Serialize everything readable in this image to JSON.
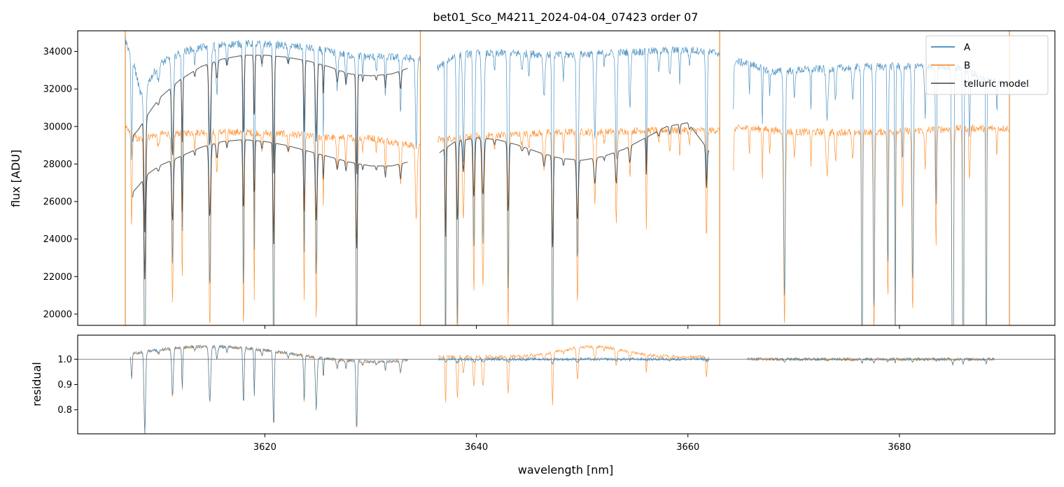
{
  "chart_data": [
    {
      "type": "line",
      "panel": "top",
      "title": "bet01_Sco_M4211_2024-04-04_07423  order 07",
      "xlabel": "",
      "ylabel": "flux [ADU]",
      "xlim": [
        3602.3,
        3694.7
      ],
      "ylim": [
        19400,
        35100
      ],
      "yticks": [
        20000,
        22000,
        24000,
        26000,
        28000,
        30000,
        32000,
        34000
      ],
      "ytick_labels": [
        "20000",
        "22000",
        "24000",
        "26000",
        "28000",
        "30000",
        "32000",
        "34000"
      ],
      "legend": {
        "position": "top-right",
        "entries": [
          "A",
          "B",
          "telluric model"
        ]
      },
      "series": [
        {
          "name": "A",
          "color": "#1f77b4",
          "segments": [
            [
              3606.8,
              3634.7
            ],
            [
              3636.3,
              3663.0
            ],
            [
              3664.3,
              3690.4
            ]
          ],
          "x": [
            3606.8,
            3607.5,
            3608.3,
            3609.0,
            3610.0,
            3611.5,
            3613.0,
            3615.0,
            3617.0,
            3620.0,
            3622.0,
            3624.0,
            3626.0,
            3628.0,
            3630.0,
            3632.0,
            3634.0,
            3634.7,
            3636.3,
            3638.0,
            3640.0,
            3644.0,
            3648.0,
            3652.0,
            3656.0,
            3660.0,
            3663.0,
            3664.3,
            3666.0,
            3668.0,
            3670.0,
            3674.0,
            3678.0,
            3682.0,
            3686.0,
            3688.0,
            3690.4
          ],
          "continuum": [
            34600,
            33600,
            31600,
            32400,
            33300,
            33800,
            34100,
            34300,
            34400,
            34400,
            34300,
            34200,
            34000,
            33800,
            33700,
            33700,
            33600,
            33600,
            33100,
            33800,
            33900,
            33900,
            33800,
            33900,
            34000,
            34100,
            33900,
            33500,
            33300,
            32900,
            33000,
            33100,
            33200,
            33200,
            33100,
            32500,
            32300
          ]
        },
        {
          "name": "B",
          "color": "#ff7f0e",
          "segments": [
            [
              3606.8,
              3634.7
            ],
            [
              3636.3,
              3663.0
            ],
            [
              3664.3,
              3690.4
            ]
          ],
          "x": [
            3606.8,
            3608.0,
            3610.0,
            3614.0,
            3618.0,
            3622.0,
            3626.0,
            3630.0,
            3634.7,
            3636.3,
            3640.0,
            3644.0,
            3648.0,
            3652.0,
            3656.0,
            3660.0,
            3663.0,
            3664.3,
            3666.0,
            3670.0,
            3674.0,
            3678.0,
            3682.0,
            3686.0,
            3690.4
          ],
          "continuum": [
            29900,
            29300,
            29600,
            29700,
            29700,
            29600,
            29400,
            29400,
            28900,
            29300,
            29500,
            29600,
            29700,
            29700,
            29800,
            29800,
            29800,
            29900,
            29900,
            29700,
            29700,
            29700,
            29800,
            29900,
            29900
          ]
        },
        {
          "name": "telluric model",
          "color": "#404040",
          "curves": [
            {
              "for": "A",
              "x": [
                3607.5,
                3608.0,
                3609.0,
                3610.0,
                3612.0,
                3614.0,
                3616.0,
                3618.0,
                3620.0,
                3622.0,
                3624.0,
                3626.0,
                3628.0,
                3630.0,
                3632.0,
                3633.5
              ],
              "y": [
                29500,
                29800,
                30700,
                31500,
                32500,
                33200,
                33600,
                33800,
                33800,
                33700,
                33500,
                33200,
                32800,
                32700,
                32800,
                33100
              ]
            },
            {
              "for": "B",
              "x": [
                3607.5,
                3608.0,
                3609.0,
                3610.0,
                3612.0,
                3614.0,
                3616.0,
                3618.0,
                3620.0,
                3622.0,
                3624.0,
                3626.0,
                3628.0,
                3630.0,
                3632.0,
                3633.5
              ],
              "y": [
                26500,
                26800,
                27500,
                27900,
                28400,
                28900,
                29200,
                29300,
                29200,
                29000,
                28700,
                28400,
                28100,
                27900,
                27900,
                28100
              ]
            },
            {
              "for": "B",
              "x": [
                3636.5,
                3638.0,
                3640.0,
                3642.0,
                3644.0,
                3646.0,
                3648.0,
                3650.0,
                3652.0,
                3654.0,
                3656.0,
                3658.0,
                3660.0,
                3662.0
              ],
              "y": [
                28600,
                29200,
                29400,
                29300,
                29000,
                28600,
                28300,
                28200,
                28400,
                28800,
                29400,
                30000,
                30200,
                28700
              ]
            }
          ]
        }
      ]
    },
    {
      "type": "line",
      "panel": "bottom",
      "title": "",
      "xlabel": "wavelength [nm]",
      "ylabel": "residual",
      "xlim": [
        3602.3,
        3694.7
      ],
      "ylim": [
        0.705,
        1.095
      ],
      "xticks": [
        3620,
        3640,
        3660,
        3680
      ],
      "xtick_labels": [
        "3620",
        "3640",
        "3660",
        "3680"
      ],
      "yticks": [
        0.8,
        0.9,
        1.0
      ],
      "ytick_labels": [
        "0.8",
        "0.9",
        "1.0"
      ],
      "reference_line": 1.0,
      "series": [
        {
          "name": "A",
          "color": "#1f77b4",
          "segments": [
            [
              3607.3,
              3633.5
            ],
            [
              3636.4,
              3662.0
            ],
            [
              3665.6,
              3689.0
            ]
          ]
        },
        {
          "name": "B",
          "color": "#ff7f0e",
          "segments": [
            [
              3607.3,
              3633.5
            ],
            [
              3636.4,
              3662.0
            ],
            [
              3665.6,
              3689.0
            ]
          ]
        }
      ]
    }
  ]
}
